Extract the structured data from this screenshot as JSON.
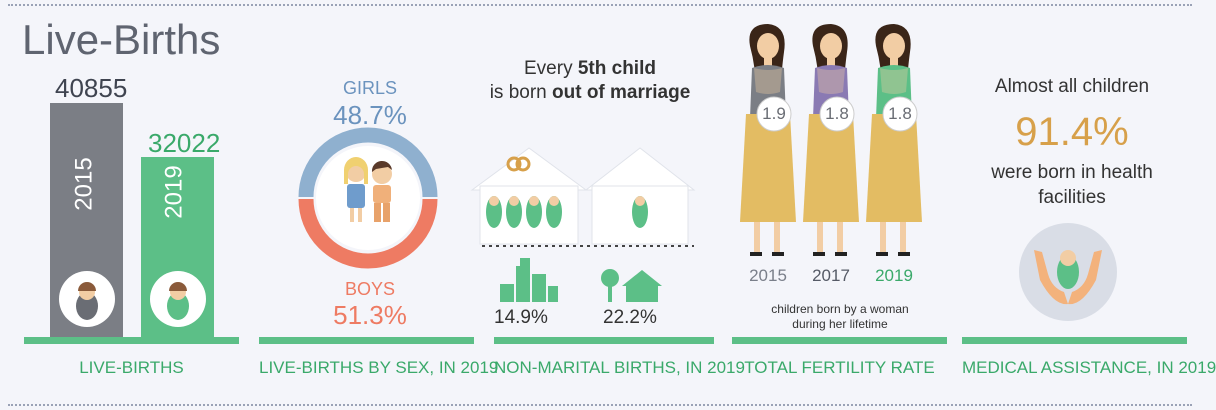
{
  "title": "Live-Births",
  "live_births": {
    "value_2015": "40855",
    "value_2019": "32022",
    "year_2015": "2015",
    "year_2019": "2019",
    "label": "LIVE-BIRTHS"
  },
  "by_sex": {
    "girls_label": "GIRLS",
    "girls_pct": "48.7%",
    "boys_label": "BOYS",
    "boys_pct": "51.3%",
    "label": "LIVE-BIRTHS BY SEX, IN 2019"
  },
  "non_marital": {
    "line1_pre": "Every ",
    "line1_bold": "5th child",
    "line2_pre": "is born ",
    "line2_bold": "out of marriage",
    "urban_pct": "14.9%",
    "rural_pct": "22.2%",
    "label": "NON-MARITAL BIRTHS, IN 2019"
  },
  "fertility": {
    "items": [
      {
        "value": "1.9",
        "year": "2015",
        "year_color": "#7a7f8a"
      },
      {
        "value": "1.8",
        "year": "2017",
        "year_color": "#555a66"
      },
      {
        "value": "1.8",
        "year": "2019",
        "year_color": "#3aa96a"
      }
    ],
    "note_line1": "children born by a woman",
    "note_line2": "during  her lifetime",
    "label": "TOTAL FERTILITY RATE"
  },
  "medical": {
    "line1": "Almost all children",
    "pct": "91.4%",
    "line2": "were born in health",
    "line3": "facilities",
    "label": "MEDICAL ASSISTANCE, IN 2019"
  },
  "colors": {
    "green": "#5cbf87",
    "grey_bar": "#7b7e85",
    "blue": "#8fb0cf",
    "coral": "#ee7b63",
    "gold": "#d7a04a"
  }
}
